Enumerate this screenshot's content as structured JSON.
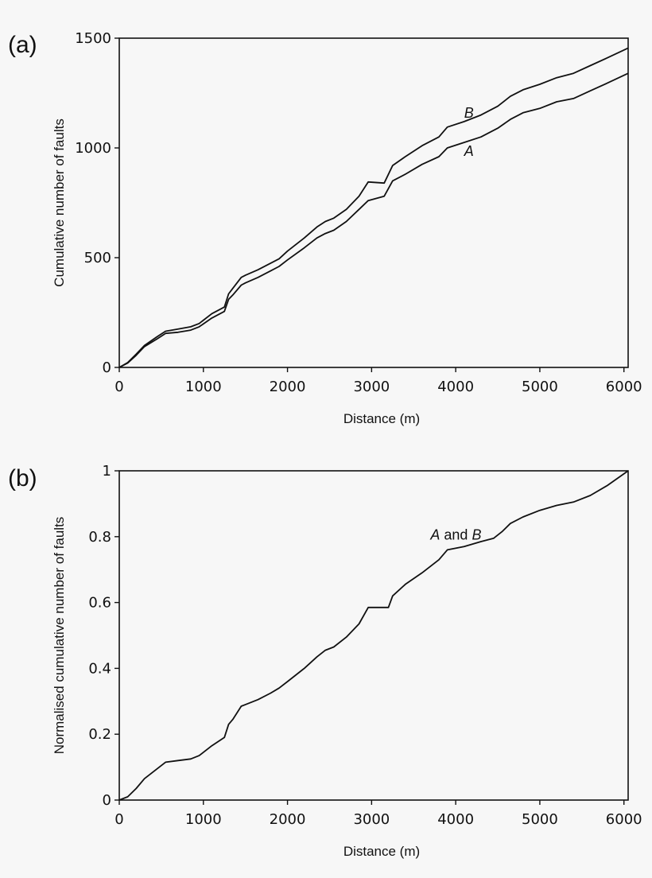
{
  "chart_data": [
    {
      "panel_label": "(a)",
      "type": "line",
      "xlabel": "Distance (m)",
      "ylabel": "Cumulative number of faults",
      "xlim": [
        0,
        6050
      ],
      "ylim": [
        0,
        1500
      ],
      "xticks": [
        "0",
        "1000",
        "2000",
        "3000",
        "4000",
        "5000",
        "6000"
      ],
      "yticks": [
        "0",
        "500",
        "1000",
        "1500"
      ],
      "gap": [
        1450,
        3150
      ],
      "annotations": [
        {
          "text": "B",
          "x": 4100,
          "y": 1160
        },
        {
          "text": "A",
          "x": 4100,
          "y": 985
        }
      ],
      "series": [
        {
          "name": "A",
          "x": [
            0,
            100,
            200,
            300,
            450,
            550,
            700,
            850,
            950,
            1100,
            1250,
            1300,
            1350,
            1450,
            1500,
            1650,
            1800,
            1900,
            2000,
            2200,
            2350,
            2450,
            2550,
            2700,
            2850,
            2960,
            3150,
            3250,
            3400,
            3600,
            3800,
            3900,
            4100,
            4300,
            4500,
            4650,
            4800,
            5000,
            5200,
            5400,
            5600,
            5800,
            6050
          ],
          "y": [
            0,
            20,
            55,
            95,
            130,
            155,
            160,
            170,
            185,
            225,
            255,
            310,
            330,
            375,
            385,
            410,
            440,
            460,
            490,
            545,
            590,
            610,
            625,
            665,
            720,
            760,
            780,
            850,
            880,
            925,
            960,
            1000,
            1025,
            1050,
            1090,
            1130,
            1160,
            1180,
            1210,
            1225,
            1260,
            1295,
            1340
          ]
        },
        {
          "name": "B",
          "x": [
            0,
            100,
            200,
            300,
            450,
            550,
            700,
            850,
            950,
            1100,
            1250,
            1300,
            1350,
            1450,
            1500,
            1650,
            1800,
            1900,
            2000,
            2200,
            2350,
            2450,
            2550,
            2700,
            2850,
            2960,
            3150,
            3250,
            3400,
            3600,
            3800,
            3900,
            4100,
            4300,
            4500,
            4650,
            4800,
            5000,
            5200,
            5400,
            5600,
            5800,
            6050
          ],
          "y": [
            0,
            22,
            60,
            100,
            140,
            165,
            175,
            185,
            200,
            245,
            275,
            335,
            360,
            410,
            420,
            445,
            475,
            495,
            530,
            590,
            640,
            665,
            680,
            720,
            780,
            845,
            840,
            920,
            960,
            1010,
            1050,
            1095,
            1120,
            1150,
            1190,
            1235,
            1265,
            1290,
            1320,
            1340,
            1375,
            1410,
            1455
          ]
        }
      ]
    },
    {
      "panel_label": "(b)",
      "type": "line",
      "xlabel": "Distance (m)",
      "ylabel": "Normalised cumulative number of faults",
      "xlim": [
        0,
        6050
      ],
      "ylim": [
        0,
        1
      ],
      "xticks": [
        "0",
        "1000",
        "2000",
        "3000",
        "4000",
        "5000",
        "6000"
      ],
      "yticks": [
        "0",
        "0.2",
        "0.4",
        "0.6",
        "0.8",
        "1"
      ],
      "annotations": [
        {
          "text": "A and B",
          "x": 3700,
          "y": 0.805
        }
      ],
      "series": [
        {
          "name": "A and B",
          "x": [
            0,
            100,
            200,
            300,
            450,
            550,
            700,
            850,
            950,
            1100,
            1250,
            1300,
            1350,
            1450,
            1500,
            1650,
            1800,
            1900,
            2000,
            2200,
            2350,
            2450,
            2550,
            2700,
            2850,
            2960,
            3200,
            3250,
            3400,
            3600,
            3800,
            3900,
            4100,
            4300,
            4450,
            4550,
            4650,
            4800,
            5000,
            5200,
            5400,
            5600,
            5800,
            6050
          ],
          "y": [
            0,
            0.01,
            0.035,
            0.065,
            0.095,
            0.115,
            0.12,
            0.125,
            0.135,
            0.165,
            0.19,
            0.23,
            0.245,
            0.285,
            0.29,
            0.305,
            0.325,
            0.34,
            0.36,
            0.4,
            0.435,
            0.455,
            0.465,
            0.495,
            0.535,
            0.585,
            0.585,
            0.62,
            0.655,
            0.69,
            0.73,
            0.76,
            0.77,
            0.785,
            0.795,
            0.815,
            0.84,
            0.86,
            0.88,
            0.895,
            0.905,
            0.925,
            0.955,
            1.0
          ]
        }
      ]
    }
  ]
}
